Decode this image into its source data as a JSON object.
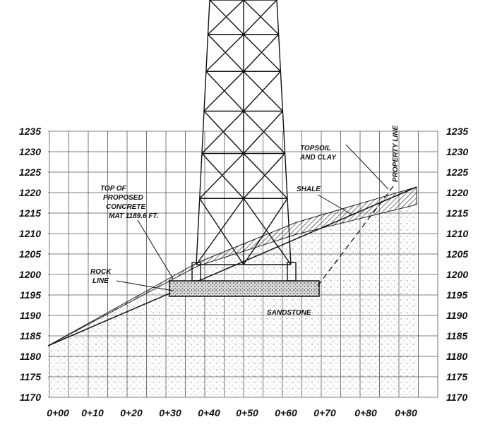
{
  "y_axis_labels_left": [
    "1235",
    "1230",
    "1225",
    "1220",
    "1215",
    "1210",
    "1205",
    "1200",
    "1195",
    "1190",
    "1185",
    "1180",
    "1175",
    "1170"
  ],
  "y_axis_labels_right": [
    "1235",
    "1230",
    "1225",
    "1220",
    "1215",
    "1210",
    "1205",
    "1200",
    "1195",
    "1190",
    "1185",
    "1180",
    "1175",
    "1170"
  ],
  "x_axis_labels": [
    "0+00",
    "0+10",
    "0+20",
    "0+30",
    "0+40",
    "0+50",
    "0+60",
    "0+70",
    "0+80",
    "0+80"
  ],
  "annotations": {
    "topsoil": [
      "TOPSOIL",
      "AND CLAY"
    ],
    "property_line": "PROPERTY LINE",
    "shale": "SHALE",
    "concrete_mat": [
      "TOP OF",
      "PROPOSED",
      "CONCRETE",
      "MAT 1189.6 FT."
    ],
    "rock_line": [
      "ROCK",
      "LINE"
    ],
    "sandstone": "SANDSTONE"
  }
}
